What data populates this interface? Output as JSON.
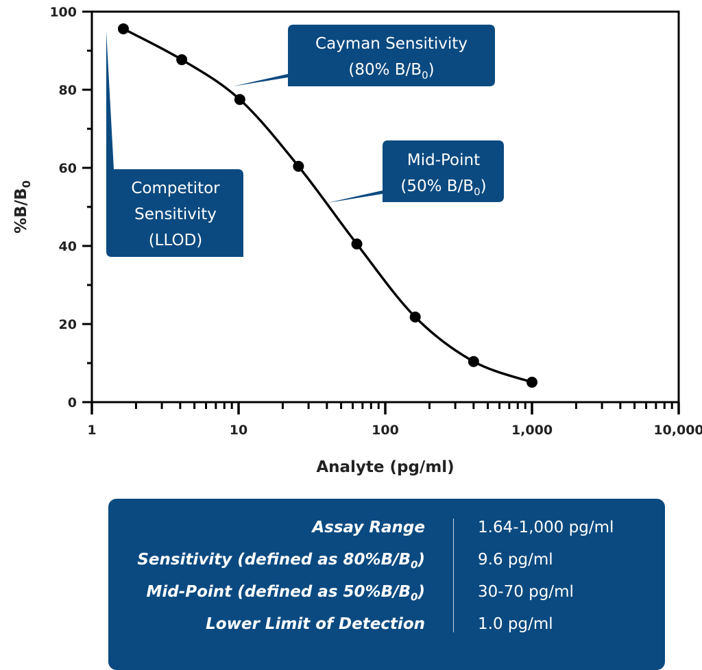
{
  "chart_data": {
    "type": "line",
    "xlabel": "Analyte (pg/ml)",
    "ylabel": "%B/B0",
    "xscale": "log",
    "xlim": [
      1,
      10000
    ],
    "ylim": [
      0,
      100
    ],
    "xticks": [
      "1",
      "10",
      "100",
      "1,000",
      "10,000"
    ],
    "yticks": [
      "0",
      "20",
      "40",
      "60",
      "80",
      "100"
    ],
    "grid": false,
    "series": [
      {
        "x": [
          1.64,
          4.1,
          10.2,
          25.6,
          64,
          160,
          400,
          1000
        ],
        "y": [
          95.6,
          87.7,
          77.5,
          60.4,
          40.5,
          21.8,
          10.4,
          5.1
        ]
      }
    ],
    "annotations": [
      {
        "line1": "Cayman Sensitivity",
        "line2": "(80% B/B",
        "sub": "0",
        "close": ")"
      },
      {
        "line1": "Mid-Point",
        "line2": "(50% B/B",
        "sub": "0",
        "close": ")"
      },
      {
        "lines": [
          "Competitor",
          "Sensitivity",
          "(LLOD)"
        ]
      }
    ],
    "colors": {
      "callout": "#0b4a80",
      "curve": "#000000"
    }
  },
  "table": {
    "rows": [
      {
        "label": "Assay Range",
        "value": "1.64-1,000 pg/ml"
      },
      {
        "label": "Sensitivity (defined as 80%B/B",
        "sub": "0",
        "close": ")",
        "value": "9.6 pg/ml"
      },
      {
        "label": "Mid-Point (defined as 50%B/B",
        "sub": "0",
        "close": ")",
        "value": "30-70 pg/ml"
      },
      {
        "label": "Lower Limit of Detection",
        "value": "1.0 pg/ml"
      }
    ]
  }
}
